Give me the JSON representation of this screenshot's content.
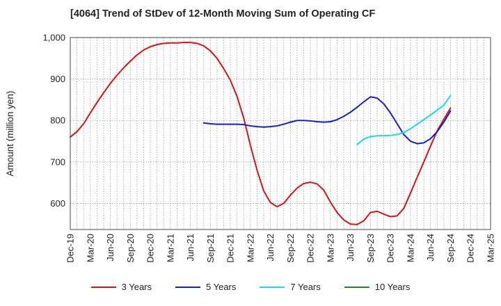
{
  "chart_data": {
    "type": "line",
    "title": "[4064]  Trend of StDev of 12-Month Moving Sum of Operating CF",
    "ylabel": "Amount (million yen)",
    "xlabel": "",
    "ylim": [
      537,
      1000
    ],
    "yticks": [
      600,
      700,
      800,
      900,
      1000
    ],
    "ytick_labels": [
      "600",
      "700",
      "800",
      "900",
      "1,000"
    ],
    "xticks": [
      "Dec-19",
      "Mar-20",
      "Jun-20",
      "Sep-20",
      "Dec-20",
      "Mar-21",
      "Jun-21",
      "Sep-21",
      "Dec-21",
      "Mar-22",
      "Jun-22",
      "Sep-22",
      "Dec-22",
      "Mar-23",
      "Jun-23",
      "Sep-23",
      "Dec-23",
      "Mar-24",
      "Jun-24",
      "Sep-24",
      "Dec-24",
      "Mar-25"
    ],
    "grid": true,
    "legend_position": "bottom",
    "series": [
      {
        "name": "3 Years",
        "color": "#dd1111",
        "values": [
          [
            "2019-12",
            760
          ],
          [
            "2020-01",
            773
          ],
          [
            "2020-02",
            792
          ],
          [
            "2020-03",
            818
          ],
          [
            "2020-04",
            843
          ],
          [
            "2020-05",
            867
          ],
          [
            "2020-06",
            889
          ],
          [
            "2020-07",
            909
          ],
          [
            "2020-08",
            927
          ],
          [
            "2020-09",
            943
          ],
          [
            "2020-10",
            958
          ],
          [
            "2020-11",
            970
          ],
          [
            "2020-12",
            978
          ],
          [
            "2021-01",
            983
          ],
          [
            "2021-02",
            986
          ],
          [
            "2021-03",
            987
          ],
          [
            "2021-04",
            987
          ],
          [
            "2021-05",
            988
          ],
          [
            "2021-06",
            988
          ],
          [
            "2021-07",
            986
          ],
          [
            "2021-08",
            980
          ],
          [
            "2021-09",
            968
          ],
          [
            "2021-10",
            950
          ],
          [
            "2021-11",
            925
          ],
          [
            "2021-12",
            897
          ],
          [
            "2022-01",
            858
          ],
          [
            "2022-02",
            806
          ],
          [
            "2022-03",
            740
          ],
          [
            "2022-04",
            680
          ],
          [
            "2022-05",
            630
          ],
          [
            "2022-06",
            602
          ],
          [
            "2022-07",
            592
          ],
          [
            "2022-08",
            600
          ],
          [
            "2022-09",
            620
          ],
          [
            "2022-10",
            637
          ],
          [
            "2022-11",
            648
          ],
          [
            "2022-12",
            651
          ],
          [
            "2023-01",
            647
          ],
          [
            "2023-02",
            632
          ],
          [
            "2023-03",
            603
          ],
          [
            "2023-04",
            578
          ],
          [
            "2023-05",
            560
          ],
          [
            "2023-06",
            550
          ],
          [
            "2023-07",
            549
          ],
          [
            "2023-08",
            558
          ],
          [
            "2023-09",
            578
          ],
          [
            "2023-10",
            581
          ],
          [
            "2023-11",
            574
          ],
          [
            "2023-12",
            568
          ],
          [
            "2024-01",
            570
          ],
          [
            "2024-02",
            588
          ],
          [
            "2024-03",
            625
          ],
          [
            "2024-04",
            663
          ],
          [
            "2024-05",
            700
          ],
          [
            "2024-06",
            738
          ],
          [
            "2024-07",
            775
          ],
          [
            "2024-08",
            803
          ],
          [
            "2024-09",
            830
          ]
        ]
      },
      {
        "name": "5 Years",
        "color": "#1122cc",
        "values": [
          [
            "2021-08",
            794
          ],
          [
            "2021-09",
            792
          ],
          [
            "2021-10",
            791
          ],
          [
            "2021-11",
            791
          ],
          [
            "2021-12",
            791
          ],
          [
            "2022-01",
            791
          ],
          [
            "2022-02",
            790
          ],
          [
            "2022-03",
            787
          ],
          [
            "2022-04",
            785
          ],
          [
            "2022-05",
            784
          ],
          [
            "2022-06",
            785
          ],
          [
            "2022-07",
            787
          ],
          [
            "2022-08",
            791
          ],
          [
            "2022-09",
            796
          ],
          [
            "2022-10",
            800
          ],
          [
            "2022-11",
            800
          ],
          [
            "2022-12",
            799
          ],
          [
            "2023-01",
            797
          ],
          [
            "2023-02",
            796
          ],
          [
            "2023-03",
            797
          ],
          [
            "2023-04",
            802
          ],
          [
            "2023-05",
            810
          ],
          [
            "2023-06",
            820
          ],
          [
            "2023-07",
            832
          ],
          [
            "2023-08",
            845
          ],
          [
            "2023-09",
            857
          ],
          [
            "2023-10",
            854
          ],
          [
            "2023-11",
            840
          ],
          [
            "2023-12",
            818
          ],
          [
            "2024-01",
            792
          ],
          [
            "2024-02",
            766
          ],
          [
            "2024-03",
            750
          ],
          [
            "2024-04",
            744
          ],
          [
            "2024-05",
            746
          ],
          [
            "2024-06",
            756
          ],
          [
            "2024-07",
            773
          ],
          [
            "2024-08",
            796
          ],
          [
            "2024-09",
            823
          ]
        ]
      },
      {
        "name": "7 Years",
        "color": "#11ddee",
        "values": [
          [
            "2023-07",
            742
          ],
          [
            "2023-08",
            755
          ],
          [
            "2023-09",
            761
          ],
          [
            "2023-10",
            763
          ],
          [
            "2023-11",
            763
          ],
          [
            "2023-12",
            764
          ],
          [
            "2024-01",
            766
          ],
          [
            "2024-02",
            771
          ],
          [
            "2024-03",
            780
          ],
          [
            "2024-04",
            791
          ],
          [
            "2024-05",
            802
          ],
          [
            "2024-06",
            813
          ],
          [
            "2024-07",
            825
          ],
          [
            "2024-08",
            837
          ],
          [
            "2024-09",
            860
          ]
        ]
      },
      {
        "name": "10 Years",
        "color": "#228822",
        "values": []
      }
    ]
  }
}
